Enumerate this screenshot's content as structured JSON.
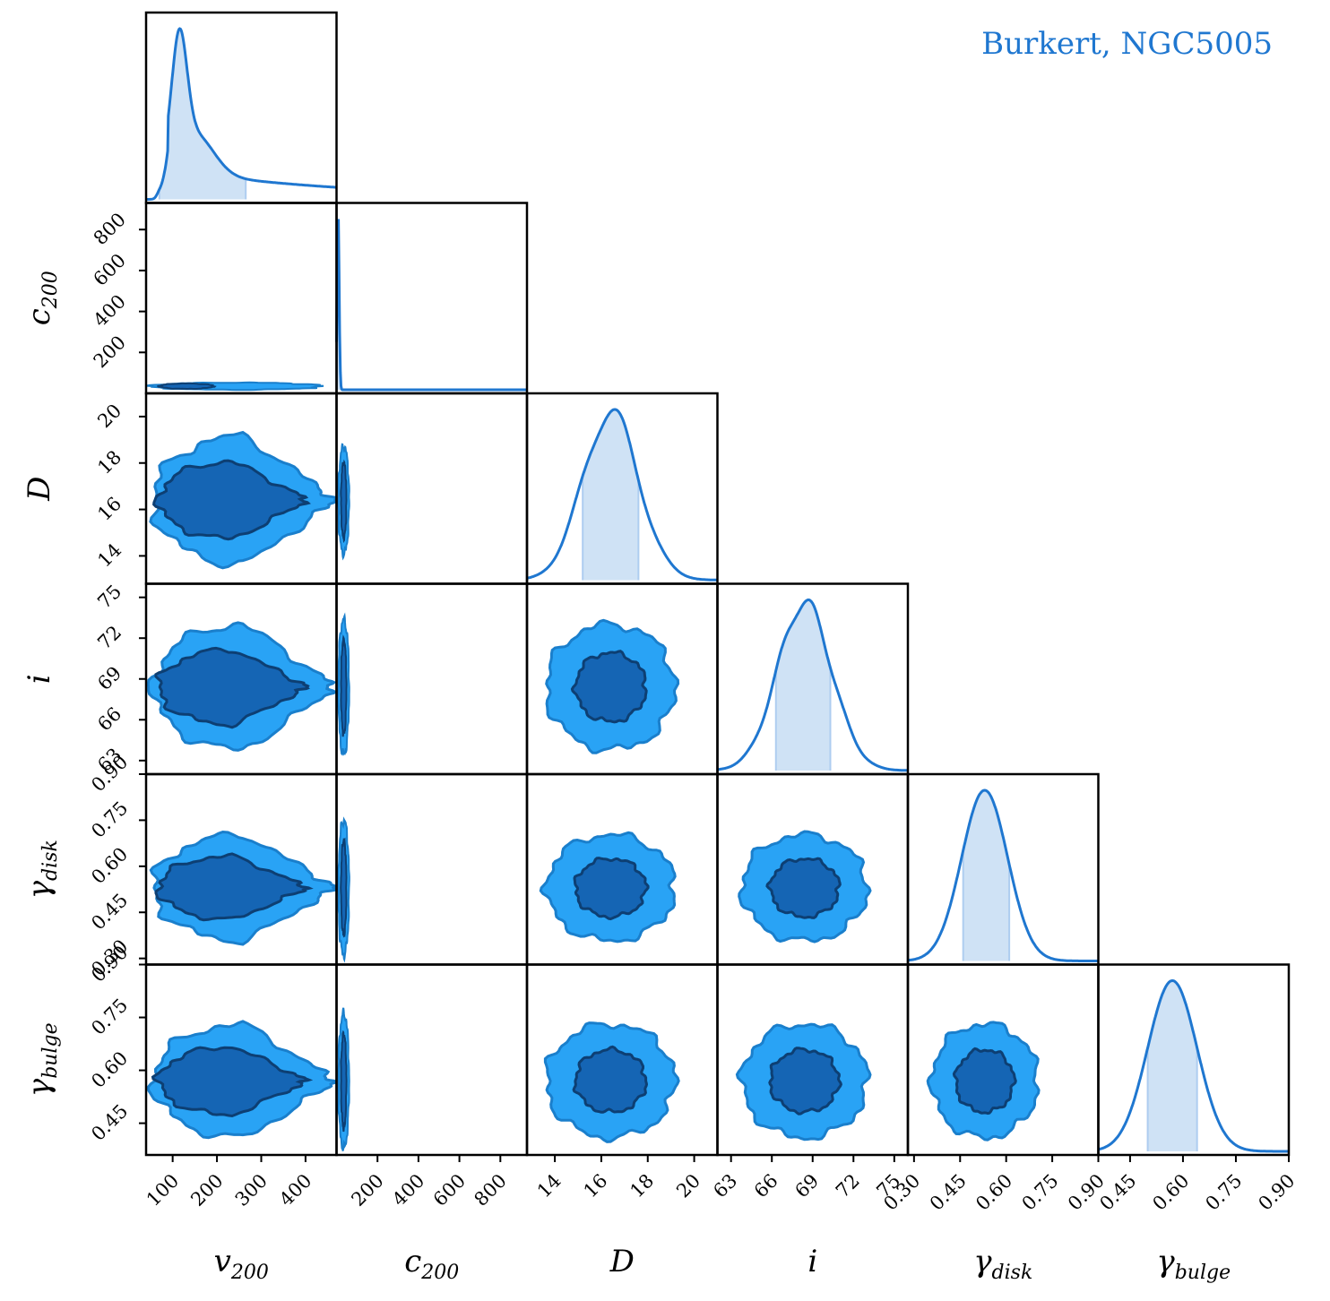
{
  "chart_data": {
    "type": "corner",
    "title": "Burkert, NGC5005",
    "colors": {
      "line": "#1f77d0",
      "fill_68": "#1565b4",
      "fill_95": "#29a3f5",
      "edge_68": "#0d3f73",
      "edge_95": "#1a7fcc",
      "band": "#cfe2f5"
    },
    "parameters": [
      {
        "key": "v200",
        "label": "v",
        "sub": "200",
        "range": [
          40,
          470
        ],
        "ticks": [
          100,
          200,
          300,
          400
        ],
        "peak": 115,
        "ci": [
          70,
          265
        ]
      },
      {
        "key": "c200",
        "label": "c",
        "sub": "200",
        "range": [
          0,
          930
        ],
        "ticks": [
          200,
          400,
          600,
          800
        ],
        "peak": 8,
        "ci": [
          0,
          35
        ]
      },
      {
        "key": "D",
        "label": "D",
        "sub": "",
        "range": [
          12.8,
          21.0
        ],
        "ticks": [
          14,
          16,
          18,
          20
        ],
        "peak": 16.4,
        "ci": [
          15.2,
          17.6
        ]
      },
      {
        "key": "i",
        "label": "i",
        "sub": "",
        "range": [
          62.0,
          76.0
        ],
        "ticks": [
          63,
          66,
          69,
          72,
          75
        ],
        "peak": 68.4,
        "ci": [
          66.3,
          70.3
        ]
      },
      {
        "key": "gamma_disk",
        "label": "γ",
        "sub": "disk",
        "range": [
          0.28,
          0.9
        ],
        "ticks": [
          0.3,
          0.45,
          0.6,
          0.75,
          0.9
        ],
        "tick_labels": [
          "0.30",
          "0.45",
          "0.60",
          "0.75",
          "0.90"
        ],
        "peak": 0.53,
        "ci": [
          0.46,
          0.61
        ]
      },
      {
        "key": "gamma_bulge",
        "label": "γ",
        "sub": "bulge",
        "range": [
          0.36,
          0.9
        ],
        "ticks": [
          0.45,
          0.6,
          0.75,
          0.9
        ],
        "tick_labels": [
          "0.45",
          "0.60",
          "0.75",
          "0.90"
        ],
        "peak": 0.57,
        "ci": [
          0.5,
          0.64
        ]
      }
    ]
  }
}
